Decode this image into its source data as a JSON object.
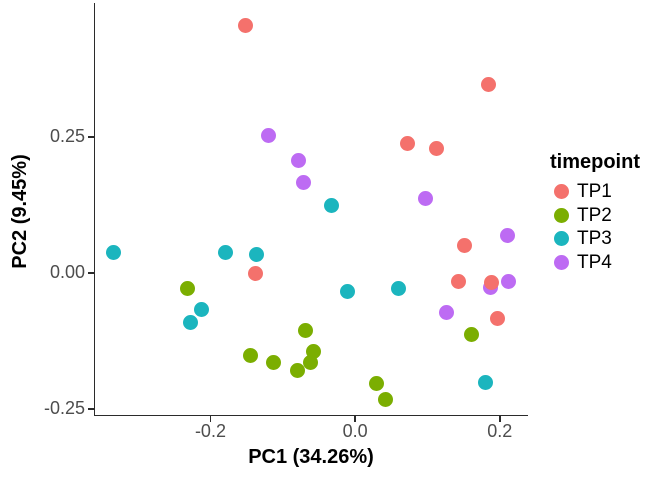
{
  "chart_data": {
    "type": "scatter",
    "title": "",
    "xlabel": "PC1 (34.26%)",
    "ylabel": "PC2 (9.45%)",
    "xlim": [
      -0.361,
      0.239
    ],
    "ylim": [
      -0.263,
      0.496
    ],
    "grid": false,
    "marker_diameter_px": 15,
    "x_ticks": [
      {
        "value": -0.2,
        "label": "-0.2"
      },
      {
        "value": 0.0,
        "label": "0.0"
      },
      {
        "value": 0.2,
        "label": "0.2"
      }
    ],
    "y_ticks": [
      {
        "value": 0.25,
        "label": "0.25"
      },
      {
        "value": 0.0,
        "label": "0.00"
      },
      {
        "value": -0.25,
        "label": "-0.25"
      }
    ],
    "legend": {
      "title": "timepoint",
      "position": "right"
    },
    "render_order": [
      "TP2",
      "TP3",
      "TP4",
      "TP1"
    ],
    "series": [
      {
        "name": "TP1",
        "color": "#f4716c",
        "points": [
          [
            -0.151,
            0.454
          ],
          [
            0.184,
            0.347
          ],
          [
            0.073,
            0.237
          ],
          [
            0.112,
            0.228
          ],
          [
            0.151,
            0.05
          ],
          [
            -0.138,
            -0.002
          ],
          [
            0.143,
            -0.015
          ],
          [
            0.188,
            -0.017
          ],
          [
            0.197,
            -0.083
          ]
        ]
      },
      {
        "name": "TP2",
        "color": "#7bae01",
        "points": [
          [
            -0.232,
            -0.029
          ],
          [
            -0.069,
            -0.105
          ],
          [
            -0.144,
            -0.151
          ],
          [
            -0.113,
            -0.165
          ],
          [
            -0.058,
            -0.145
          ],
          [
            -0.062,
            -0.164
          ],
          [
            -0.079,
            -0.18
          ],
          [
            0.161,
            -0.114
          ],
          [
            0.029,
            -0.204
          ],
          [
            0.042,
            -0.233
          ]
        ]
      },
      {
        "name": "TP3",
        "color": "#1bb5be",
        "points": [
          [
            -0.033,
            0.123
          ],
          [
            -0.334,
            0.037
          ],
          [
            -0.179,
            0.037
          ],
          [
            -0.137,
            0.033
          ],
          [
            -0.212,
            -0.068
          ],
          [
            -0.228,
            -0.092
          ],
          [
            -0.011,
            -0.035
          ],
          [
            0.06,
            -0.029
          ],
          [
            0.18,
            -0.202
          ]
        ]
      },
      {
        "name": "TP4",
        "color": "#bd6bf3",
        "points": [
          [
            -0.12,
            0.252
          ],
          [
            -0.078,
            0.206
          ],
          [
            -0.072,
            0.167
          ],
          [
            0.097,
            0.136
          ],
          [
            0.21,
            0.068
          ],
          [
            0.212,
            -0.015
          ],
          [
            0.187,
            -0.026
          ],
          [
            0.127,
            -0.072
          ]
        ]
      }
    ]
  }
}
